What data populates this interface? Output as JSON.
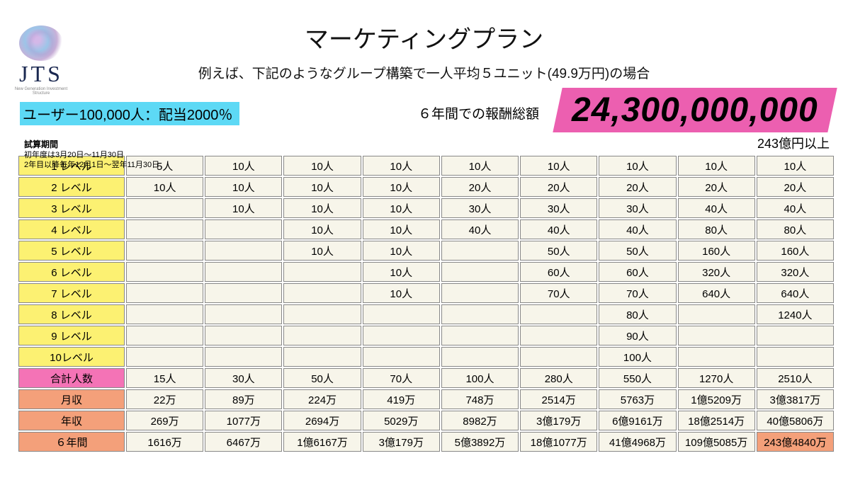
{
  "logo": {
    "text": "JTS",
    "sub": "New Generation Investment Structure"
  },
  "title": "マーケティングプラン",
  "subtitle": "例えば、下記のようなグループ構築で一人平均５ユニット(49.9万円)の場合",
  "user_highlight": {
    "text": "ユーザー100,000人：配当2000％",
    "bg": "#5dd9f5"
  },
  "period": {
    "label": "試算期間",
    "line1": "初年度は3月20日～11月30日",
    "line2": "2年目以降毎年12月1日～翌年11月30日"
  },
  "six_year_label": "６年間での報酬総額",
  "big_number": {
    "value": "24,300,000,000",
    "bg": "#ec5fb0",
    "sub": "243億円以上"
  },
  "colors": {
    "level_bg": "#fcf172",
    "total_bg": "#f473b6",
    "income_bg": "#f4a07a",
    "cell_bg": "#f7f5ea",
    "highlight_cell": "#f4a07a",
    "border": "#888888"
  },
  "columns": 9,
  "levels": [
    {
      "name": "1 レベル",
      "cells": [
        "5人",
        "10人",
        "10人",
        "10人",
        "10人",
        "10人",
        "10人",
        "10人",
        "10人"
      ]
    },
    {
      "name": "2 レベル",
      "cells": [
        "10人",
        "10人",
        "10人",
        "10人",
        "20人",
        "20人",
        "20人",
        "20人",
        "20人"
      ]
    },
    {
      "name": "3 レベル",
      "cells": [
        "",
        "10人",
        "10人",
        "10人",
        "30人",
        "30人",
        "30人",
        "40人",
        "40人"
      ]
    },
    {
      "name": "4 レベル",
      "cells": [
        "",
        "",
        "10人",
        "10人",
        "40人",
        "40人",
        "40人",
        "80人",
        "80人"
      ]
    },
    {
      "name": "5 レベル",
      "cells": [
        "",
        "",
        "10人",
        "10人",
        "",
        "50人",
        "50人",
        "160人",
        "160人"
      ]
    },
    {
      "name": "6 レベル",
      "cells": [
        "",
        "",
        "",
        "10人",
        "",
        "60人",
        "60人",
        "320人",
        "320人"
      ]
    },
    {
      "name": "7 レベル",
      "cells": [
        "",
        "",
        "",
        "10人",
        "",
        "70人",
        "70人",
        "640人",
        "640人"
      ]
    },
    {
      "name": "8 レベル",
      "cells": [
        "",
        "",
        "",
        "",
        "",
        "",
        "80人",
        "",
        "1240人"
      ]
    },
    {
      "name": "9 レベル",
      "cells": [
        "",
        "",
        "",
        "",
        "",
        "",
        "90人",
        "",
        ""
      ]
    },
    {
      "name": "10レベル",
      "cells": [
        "",
        "",
        "",
        "",
        "",
        "",
        "100人",
        "",
        ""
      ]
    }
  ],
  "total": {
    "name": "合計人数",
    "cells": [
      "15人",
      "30人",
      "50人",
      "70人",
      "100人",
      "280人",
      "550人",
      "1270人",
      "2510人"
    ]
  },
  "income": [
    {
      "name": "月収",
      "cells": [
        "22万",
        "89万",
        "224万",
        "419万",
        "748万",
        "2514万",
        "5763万",
        "1億5209万",
        "3億3817万"
      ]
    },
    {
      "name": "年収",
      "cells": [
        "269万",
        "1077万",
        "2694万",
        "5029万",
        "8982万",
        "3億179万",
        "6億9161万",
        "18億2514万",
        "40億5806万"
      ]
    },
    {
      "name": "６年間",
      "cells": [
        "1616万",
        "6467万",
        "1億6167万",
        "3億179万",
        "5億3892万",
        "18億1077万",
        "41億4968万",
        "109億5085万",
        "243億4840万"
      ],
      "highlight_last": true
    }
  ]
}
